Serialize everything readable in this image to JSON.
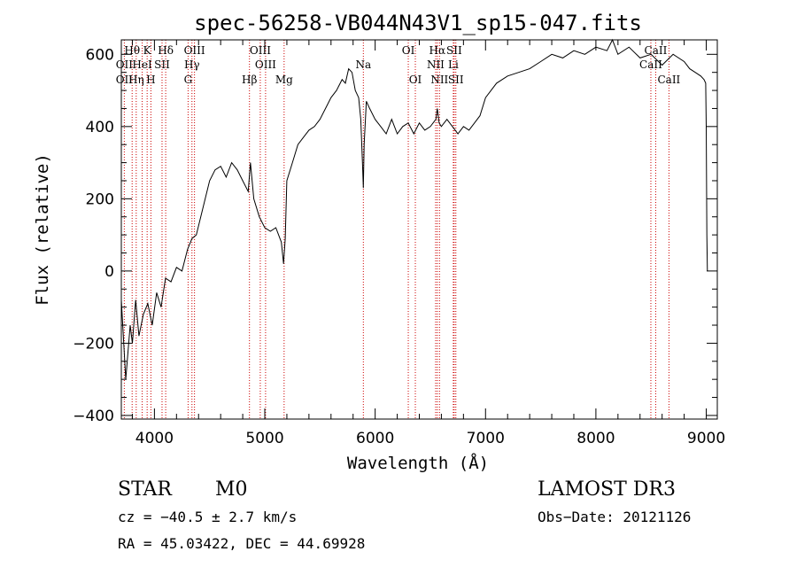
{
  "chart_data": {
    "type": "line",
    "title": "spec-56258-VB044N43V1_sp15-047.fits",
    "xlabel": "Wavelength (Å)",
    "ylabel": "Flux (relative)",
    "xlim": [
      3700,
      9100
    ],
    "ylim": [
      -410,
      640
    ],
    "x_ticks": [
      4000,
      5000,
      6000,
      7000,
      8000,
      9000
    ],
    "x_tick_labels": [
      "4000",
      "5000",
      "6000",
      "7000",
      "8000",
      "9000"
    ],
    "y_ticks": [
      -400,
      -200,
      0,
      200,
      400,
      600
    ],
    "y_tick_labels": [
      "−400",
      "−200",
      "0",
      "200",
      "400",
      "600"
    ],
    "grid": false,
    "series": [
      {
        "name": "flux",
        "x": [
          3700,
          3740,
          3780,
          3800,
          3830,
          3860,
          3900,
          3940,
          3980,
          4020,
          4060,
          4100,
          4150,
          4200,
          4250,
          4300,
          4340,
          4380,
          4420,
          4460,
          4500,
          4550,
          4600,
          4650,
          4700,
          4750,
          4800,
          4850,
          4870,
          4900,
          4950,
          5000,
          5050,
          5100,
          5150,
          5170,
          5185,
          5200,
          5250,
          5300,
          5350,
          5400,
          5450,
          5500,
          5550,
          5600,
          5650,
          5700,
          5730,
          5760,
          5790,
          5820,
          5850,
          5870,
          5885,
          5893,
          5900,
          5920,
          5950,
          6000,
          6050,
          6100,
          6150,
          6200,
          6250,
          6300,
          6350,
          6400,
          6450,
          6500,
          6550,
          6563,
          6580,
          6600,
          6650,
          6700,
          6750,
          6800,
          6850,
          6900,
          6950,
          7000,
          7050,
          7100,
          7200,
          7300,
          7400,
          7500,
          7600,
          7700,
          7800,
          7900,
          8000,
          8100,
          8150,
          8200,
          8300,
          8400,
          8500,
          8600,
          8700,
          8800,
          8850,
          8900,
          8950,
          8980,
          8995,
          9000,
          9005,
          9010
        ],
        "values": [
          -80,
          -300,
          -150,
          -200,
          -80,
          -180,
          -120,
          -90,
          -150,
          -60,
          -100,
          -20,
          -30,
          10,
          0,
          60,
          90,
          100,
          150,
          200,
          250,
          280,
          290,
          260,
          300,
          280,
          250,
          220,
          300,
          200,
          150,
          120,
          110,
          120,
          80,
          20,
          90,
          250,
          300,
          350,
          370,
          390,
          400,
          420,
          450,
          480,
          500,
          530,
          520,
          560,
          550,
          500,
          480,
          420,
          300,
          230,
          350,
          470,
          450,
          420,
          400,
          380,
          420,
          380,
          400,
          410,
          380,
          410,
          390,
          400,
          420,
          450,
          410,
          400,
          420,
          400,
          380,
          400,
          390,
          410,
          430,
          480,
          500,
          520,
          540,
          550,
          560,
          580,
          600,
          590,
          610,
          600,
          620,
          610,
          640,
          600,
          620,
          590,
          600,
          570,
          600,
          580,
          560,
          550,
          540,
          530,
          520,
          400,
          100,
          0
        ]
      }
    ],
    "annotations": [
      {
        "label": "Hθ",
        "x": 3798,
        "row": 1
      },
      {
        "label": "OII",
        "x": 3727,
        "row": 2
      },
      {
        "label": "OII",
        "x": 3727,
        "row": 3
      },
      {
        "label": "K",
        "x": 3934,
        "row": 1
      },
      {
        "label": "HeI",
        "x": 3889,
        "row": 2
      },
      {
        "label": "Hη",
        "x": 3835,
        "row": 3
      },
      {
        "label": "H",
        "x": 3968,
        "row": 3
      },
      {
        "label": "SII",
        "x": 4069,
        "row": 2
      },
      {
        "label": "Hδ",
        "x": 4102,
        "row": 1
      },
      {
        "label": "OIII",
        "x": 4363,
        "row": 1
      },
      {
        "label": "Hγ",
        "x": 4340,
        "row": 2
      },
      {
        "label": "G",
        "x": 4305,
        "row": 3
      },
      {
        "label": "OIII",
        "x": 4959,
        "row": 1
      },
      {
        "label": "OIII",
        "x": 5007,
        "row": 2
      },
      {
        "label": "Hβ",
        "x": 4861,
        "row": 3
      },
      {
        "label": "Mg",
        "x": 5175,
        "row": 3
      },
      {
        "label": "Na",
        "x": 5893,
        "row": 2
      },
      {
        "label": "OI",
        "x": 6300,
        "row": 1
      },
      {
        "label": "OI",
        "x": 6364,
        "row": 3
      },
      {
        "label": "Hα",
        "x": 6563,
        "row": 1
      },
      {
        "label": "NII",
        "x": 6548,
        "row": 2
      },
      {
        "label": "NII",
        "x": 6583,
        "row": 3
      },
      {
        "label": "SII",
        "x": 6716,
        "row": 1
      },
      {
        "label": "Li",
        "x": 6708,
        "row": 2
      },
      {
        "label": "SII",
        "x": 6731,
        "row": 3
      },
      {
        "label": "CaII",
        "x": 8542,
        "row": 1
      },
      {
        "label": "CaII",
        "x": 8498,
        "row": 2
      },
      {
        "label": "CaII",
        "x": 8662,
        "row": 3
      }
    ],
    "info": {
      "class": "STAR",
      "subclass": "M0",
      "survey": "LAMOST DR3",
      "cz": "cz = −40.5 ± 2.7 km/s",
      "obs_date": "Obs−Date: 20121126",
      "coords": "RA =  45.03422, DEC =  44.69928"
    },
    "colors": {
      "spectrum": "#000000",
      "line_marker": "#cc0000",
      "axes": "#000000",
      "background": "#ffffff"
    }
  }
}
